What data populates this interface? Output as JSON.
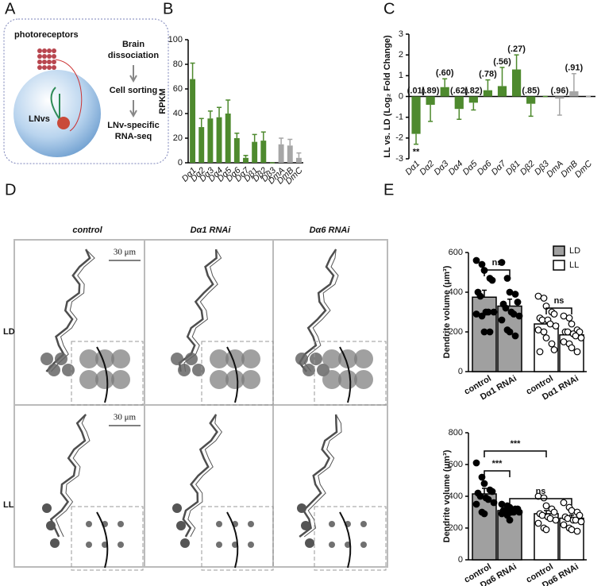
{
  "panel_labels": [
    "A",
    "B",
    "C",
    "D",
    "E"
  ],
  "diagram": {
    "photoreceptors": "photoreceptors",
    "cell": "LNvs",
    "steps": [
      [
        "Brain",
        "dissociation"
      ],
      [
        "Cell sorting"
      ],
      [
        "LNv-specific",
        "RNA-seq"
      ]
    ]
  },
  "images": {
    "columns": [
      "control",
      "Dα1 RNAi",
      "Dα6 RNAi"
    ],
    "rows": [
      "LD",
      "LL"
    ],
    "scale_bars": [
      "30 μm",
      "30 μm"
    ]
  },
  "chart_data": [
    {
      "type": "bar",
      "ylabel": "RPKM",
      "categories": [
        "Dα1",
        "Dα2",
        "Dα3",
        "Dα4",
        "Dα5",
        "Dα6",
        "Dα7",
        "Dβ1",
        "Dβ2",
        "Dβ3",
        "DmA",
        "DmB",
        "DmC"
      ],
      "values": [
        68,
        29,
        36,
        37,
        40,
        20,
        4,
        17,
        18,
        0,
        15,
        14,
        4
      ],
      "errors": [
        13,
        7,
        6,
        8,
        11,
        4,
        2,
        6,
        7,
        0,
        5,
        5,
        4
      ],
      "colors": [
        "#4e8a2e",
        "#4e8a2e",
        "#4e8a2e",
        "#4e8a2e",
        "#4e8a2e",
        "#4e8a2e",
        "#4e8a2e",
        "#4e8a2e",
        "#4e8a2e",
        "#4e8a2e",
        "#a6a6a6",
        "#a6a6a6",
        "#a6a6a6"
      ],
      "ylim": [
        0,
        100
      ],
      "yticks": [
        0,
        20,
        40,
        60,
        80,
        100
      ]
    },
    {
      "type": "bar",
      "ylabel": "LL vs. LD (Log₂ Fold Change)",
      "categories": [
        "Dα1",
        "Dα2",
        "Dα3",
        "Dα4",
        "Dα5",
        "Dα6",
        "Dα7",
        "Dβ1",
        "Dβ2",
        "Dβ3",
        "DmA",
        "DmB",
        "DmC"
      ],
      "values": [
        -1.8,
        -0.4,
        0.45,
        -0.6,
        -0.3,
        0.3,
        0.5,
        1.3,
        -0.35,
        0,
        -0.1,
        0.25,
        0
      ],
      "errors": [
        0.5,
        0.8,
        0.4,
        0.5,
        0.35,
        0.5,
        0.9,
        0.7,
        0.6,
        0,
        0.8,
        0.85,
        0
      ],
      "bar_labels": [
        "(.01)",
        "(.89)",
        "(.60)",
        "(.62)",
        "(.82)",
        "(.78)",
        "(.56)",
        "(.27)",
        "(.85)",
        null,
        "(.96)",
        "(.91)",
        null
      ],
      "significance": [
        {
          "label": "**",
          "bar": 0
        }
      ],
      "colors": [
        "#4e8a2e",
        "#4e8a2e",
        "#4e8a2e",
        "#4e8a2e",
        "#4e8a2e",
        "#4e8a2e",
        "#4e8a2e",
        "#4e8a2e",
        "#4e8a2e",
        "#4e8a2e",
        "#a6a6a6",
        "#a6a6a6",
        "#a6a6a6"
      ],
      "ylim": [
        -3,
        3
      ],
      "yticks": [
        -3,
        -2,
        -1,
        0,
        1,
        2,
        3
      ]
    },
    {
      "type": "dotbar",
      "ylabel": "Dendrite volume (μm³)",
      "categories": [
        "control",
        "Dα1 RNAi",
        "control",
        "Dα1 RNAi"
      ],
      "values": [
        375,
        330,
        240,
        185
      ],
      "errors": [
        35,
        35,
        20,
        18
      ],
      "points": [
        [
          560,
          540,
          510,
          470,
          460,
          400,
          380,
          300,
          300,
          300,
          290,
          280,
          200,
          200
        ],
        [
          550,
          470,
          400,
          390,
          350,
          340,
          320,
          300,
          290,
          280,
          260,
          210,
          200,
          180
        ],
        [
          380,
          370,
          330,
          300,
          290,
          270,
          260,
          260,
          240,
          230,
          210,
          200,
          170,
          140,
          110,
          100
        ],
        [
          280,
          270,
          240,
          210,
          200,
          200,
          200,
          190,
          180,
          170,
          150,
          140,
          120,
          100
        ]
      ],
      "colors": [
        "#a0a0a0",
        "#a0a0a0",
        "#ffffff",
        "#ffffff"
      ],
      "legend": [
        {
          "name": "LD",
          "color": "#a0a0a0"
        },
        {
          "name": "LL",
          "color": "#ffffff"
        }
      ],
      "significance": [
        {
          "label": "ns",
          "pair": [
            0,
            1
          ]
        },
        {
          "label": "ns",
          "pair": [
            2,
            3
          ]
        }
      ],
      "ylim": [
        0,
        600
      ],
      "yticks": [
        0,
        200,
        400,
        600
      ]
    },
    {
      "type": "dotbar",
      "ylabel": "Dendrite volume (μm³)",
      "categories": [
        "control",
        "Dα6 RNAi",
        "control",
        "Dα6 RNAi"
      ],
      "values": [
        415,
        310,
        290,
        262
      ],
      "errors": [
        35,
        15,
        20,
        20
      ],
      "points": [
        [
          610,
          520,
          480,
          440,
          430,
          420,
          400,
          390,
          380,
          360,
          350,
          300,
          290
        ],
        [
          350,
          340,
          330,
          320,
          320,
          310,
          310,
          300,
          300,
          300,
          290,
          280,
          250
        ],
        [
          400,
          390,
          340,
          320,
          300,
          290,
          280,
          270,
          260,
          250,
          230,
          200,
          190
        ],
        [
          360,
          330,
          310,
          300,
          280,
          270,
          260,
          250,
          250,
          240,
          220,
          200,
          190,
          180
        ]
      ],
      "colors": [
        "#a0a0a0",
        "#a0a0a0",
        "#ffffff",
        "#ffffff"
      ],
      "significance": [
        {
          "label": "***",
          "pair": [
            0,
            1
          ]
        },
        {
          "label": "***",
          "pair": [
            0,
            2
          ]
        },
        {
          "label": "ns",
          "pair": [
            1,
            3
          ]
        }
      ],
      "ylim": [
        0,
        800
      ],
      "yticks": [
        0,
        200,
        400,
        600,
        800
      ]
    }
  ]
}
